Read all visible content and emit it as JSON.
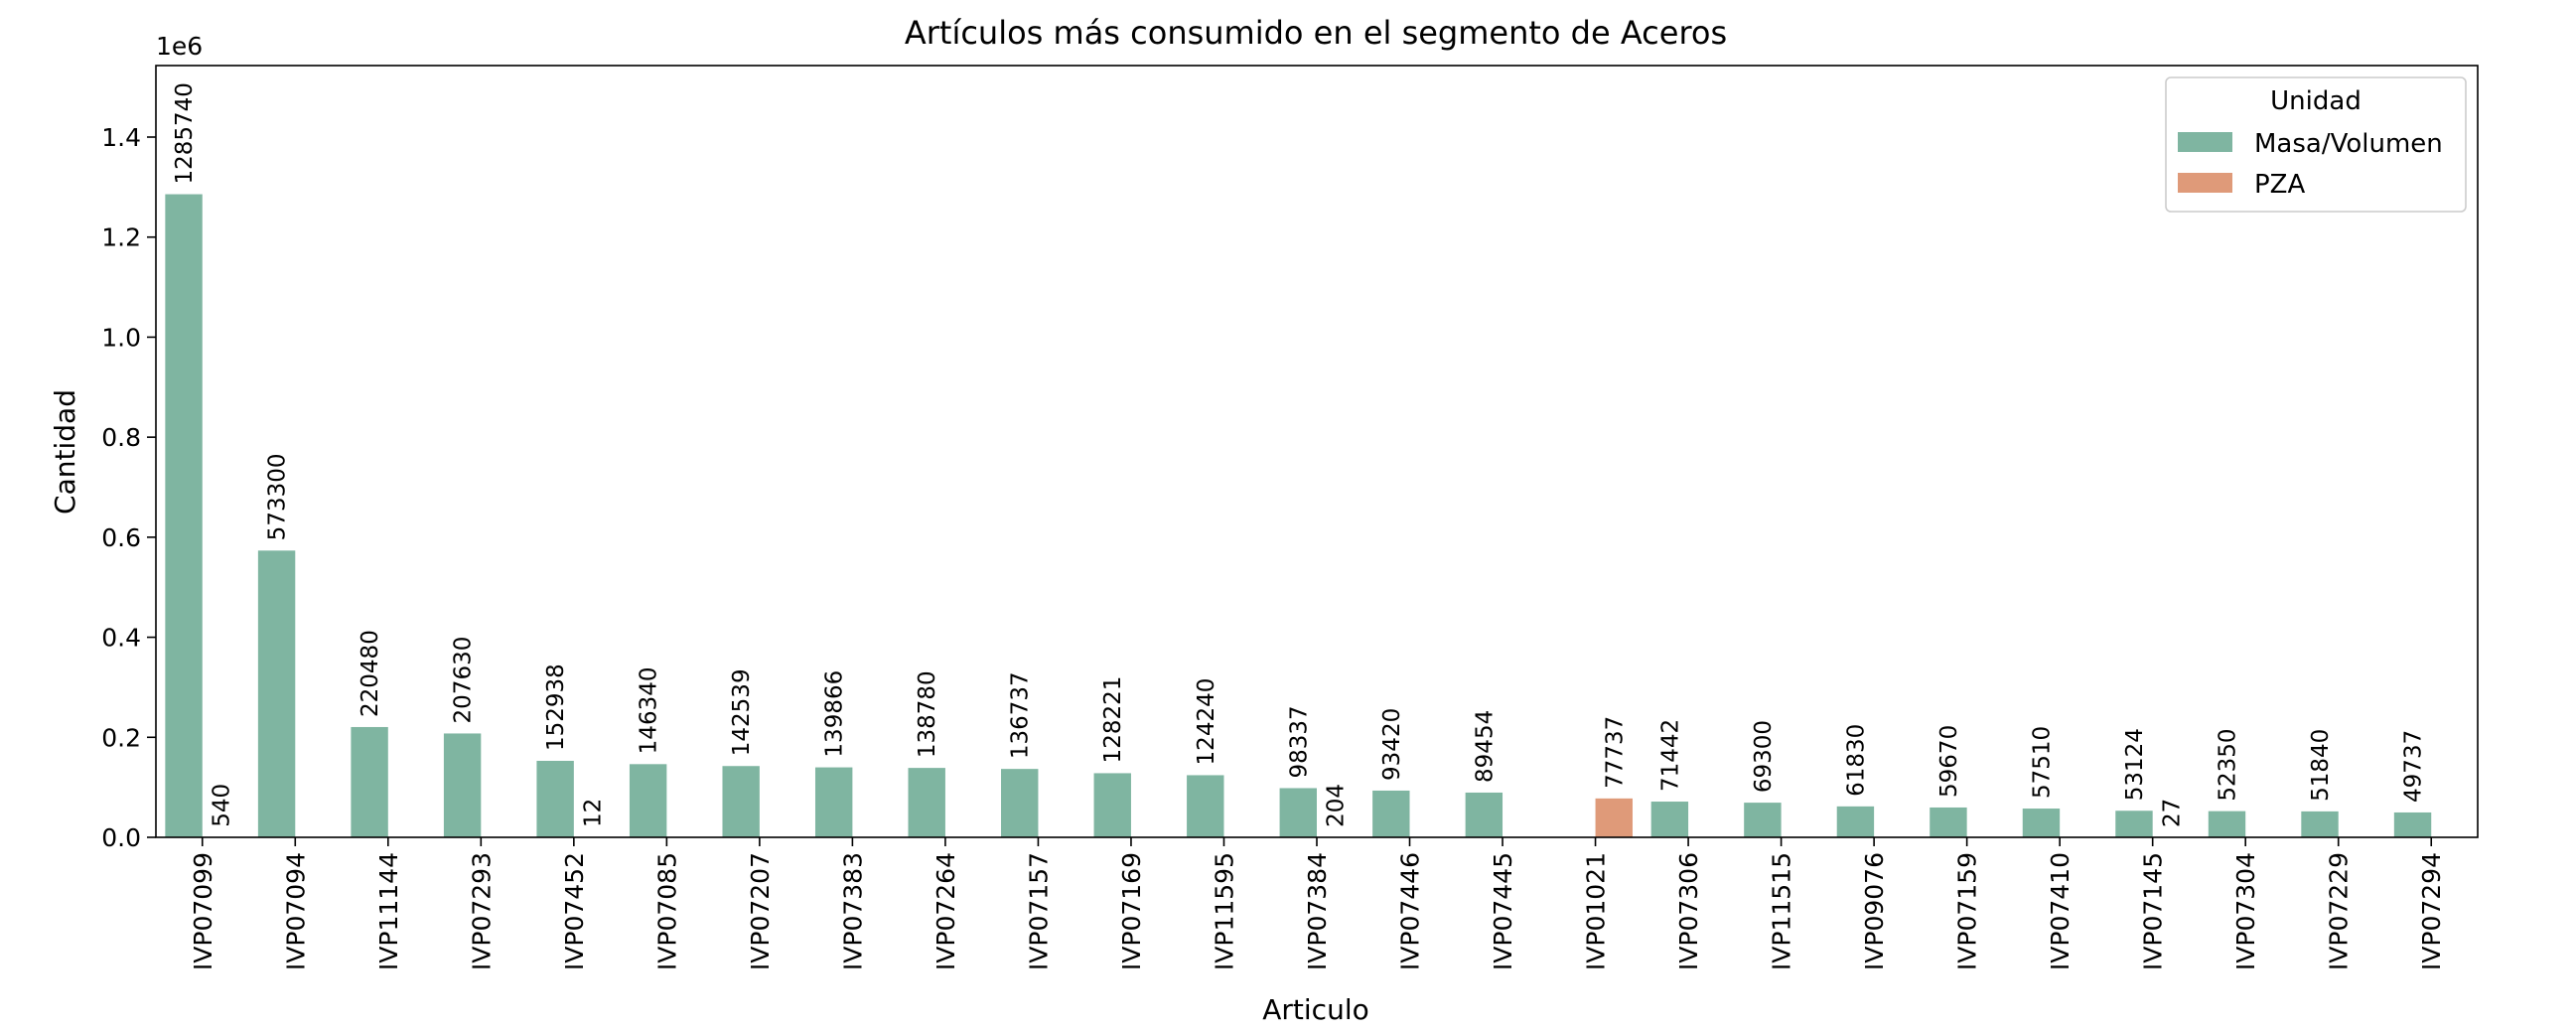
{
  "chart_data": {
    "type": "bar",
    "title": "Artículos más consumido en el segmento de Aceros",
    "xlabel": "Articulo",
    "ylabel": "Cantidad",
    "y_offset_text": "1e6",
    "y_scale": 1000000,
    "ylim": [
      0,
      1543000
    ],
    "yticks": [
      0,
      200000,
      400000,
      600000,
      800000,
      1000000,
      1200000,
      1400000
    ],
    "ytick_labels": [
      "0.0",
      "0.2",
      "0.4",
      "0.6",
      "0.8",
      "1.0",
      "1.2",
      "1.4"
    ],
    "grid": false,
    "legend": {
      "title": "Unidad",
      "placement": "top-right"
    },
    "categories": [
      "IVP07099",
      "IVP07094",
      "IVP11144",
      "IVP07293",
      "IVP07452",
      "IVP07085",
      "IVP07207",
      "IVP07383",
      "IVP07264",
      "IVP07157",
      "IVP07169",
      "IVP11595",
      "IVP07384",
      "IVP07446",
      "IVP07445",
      "IVP01021",
      "IVP07306",
      "IVP11515",
      "IVP09076",
      "IVP07159",
      "IVP07410",
      "IVP07145",
      "IVP07304",
      "IVP07229",
      "IVP07294"
    ],
    "series": [
      {
        "name": "Masa/Volumen",
        "color": "#7fb5a1",
        "values": [
          1285740,
          573300,
          220480,
          207630,
          152938,
          146340,
          142539,
          139866,
          138780,
          136737,
          128221,
          124240,
          98337,
          93420,
          89454,
          null,
          71442,
          69300,
          61830,
          59670,
          57510,
          53124,
          52350,
          51840,
          49737
        ]
      },
      {
        "name": "PZA",
        "color": "#df9a79",
        "values": [
          540,
          null,
          null,
          null,
          12,
          null,
          null,
          null,
          null,
          null,
          null,
          null,
          204,
          null,
          null,
          77737,
          null,
          null,
          null,
          null,
          null,
          27,
          null,
          null,
          null
        ]
      }
    ]
  }
}
